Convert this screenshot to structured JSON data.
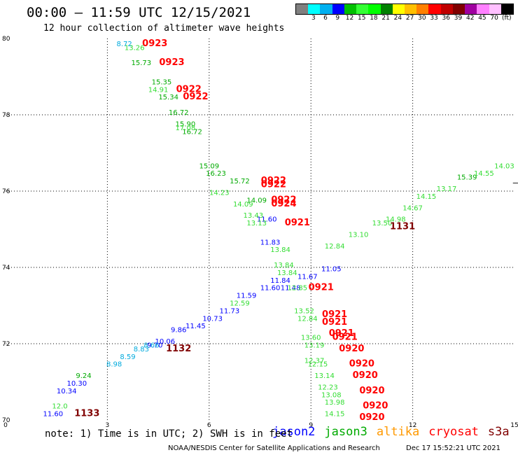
{
  "header": {
    "title": "00:00 – 11:59 UTC 12/15/2021",
    "subtitle": "12 hour collection of altimeter wave heights"
  },
  "colorbar": {
    "colors": [
      "#808080",
      "#00ffff",
      "#00b0f0",
      "#0000ff",
      "#00c000",
      "#33ff33",
      "#00ff00",
      "#008000",
      "#ffff00",
      "#ffc000",
      "#ff8000",
      "#ff0000",
      "#c00000",
      "#800000",
      "#a000a0",
      "#ff80ff",
      "#ffc0ff",
      "#000000"
    ],
    "labels": [
      "3",
      "6",
      "9",
      "12",
      "15",
      "18",
      "21",
      "24",
      "27",
      "30",
      "33",
      "36",
      "39",
      "42",
      "45",
      "70"
    ],
    "units": "(ft)"
  },
  "footer": {
    "note": "note: 1) Time is in UTC; 2) SWH is in feet",
    "credit": "NOAA/NESDIS Center for Satellite Applications and Research",
    "timestamp": "Dec 17 15:52:21 UTC 2021",
    "legend": [
      {
        "name": "jason2",
        "color": "#0000ff"
      },
      {
        "name": "jason3",
        "color": "#00aa00"
      },
      {
        "name": "altika",
        "color": "#ff9900"
      },
      {
        "name": "cryosat",
        "color": "#ff0000"
      },
      {
        "name": "s3a",
        "color": "#800000"
      }
    ]
  },
  "chart_data": {
    "type": "scatter",
    "xlim": [
      0,
      15
    ],
    "ylim": [
      70,
      80
    ],
    "xticks": [
      "0",
      "3",
      "6",
      "9",
      "12",
      "15"
    ],
    "yticks": [
      "70",
      "72",
      "74",
      "76",
      "78",
      "80"
    ],
    "grid": true,
    "series": [
      {
        "name": "jason2",
        "color": "#0000ff",
        "points": [
          {
            "x": 9.6,
            "y": 73.9,
            "label": "11.05"
          },
          {
            "x": 8.9,
            "y": 73.7,
            "label": "11.67"
          },
          {
            "x": 8.1,
            "y": 73.6,
            "label": "11.84"
          },
          {
            "x": 7.8,
            "y": 73.4,
            "label": "11.60"
          },
          {
            "x": 8.4,
            "y": 73.4,
            "label": "11.48"
          },
          {
            "x": 7.1,
            "y": 73.2,
            "label": "11.59"
          },
          {
            "x": 6.6,
            "y": 72.8,
            "label": "11.73"
          },
          {
            "x": 6.1,
            "y": 72.6,
            "label": "10.73"
          },
          {
            "x": 5.6,
            "y": 72.4,
            "label": "11.45"
          },
          {
            "x": 5.1,
            "y": 72.3,
            "label": "9.86"
          },
          {
            "x": 4.7,
            "y": 72.0,
            "label": "10.06"
          },
          {
            "x": 4.4,
            "y": 71.9,
            "label": "9.70"
          },
          {
            "x": 2.1,
            "y": 70.9,
            "label": "10.30"
          },
          {
            "x": 1.8,
            "y": 70.7,
            "label": "10.34"
          },
          {
            "x": 1.4,
            "y": 70.1,
            "label": "11.60"
          },
          {
            "x": 7.7,
            "y": 75.2,
            "label": "11.60"
          },
          {
            "x": 7.8,
            "y": 74.6,
            "label": "11.83"
          }
        ]
      },
      {
        "name": "jason3",
        "color": "#00aa00",
        "points": [
          {
            "x": 4.0,
            "y": 79.3,
            "label": "15.73"
          },
          {
            "x": 4.6,
            "y": 78.8,
            "label": "15.35"
          },
          {
            "x": 4.8,
            "y": 78.4,
            "label": "15.34"
          },
          {
            "x": 5.1,
            "y": 78.0,
            "label": "16.72"
          },
          {
            "x": 5.3,
            "y": 77.7,
            "label": "15.90"
          },
          {
            "x": 5.5,
            "y": 77.5,
            "label": "16.72"
          },
          {
            "x": 6.0,
            "y": 76.6,
            "label": "15.09"
          },
          {
            "x": 6.2,
            "y": 76.4,
            "label": "16.23"
          },
          {
            "x": 6.9,
            "y": 76.2,
            "label": "15.72"
          },
          {
            "x": 7.4,
            "y": 75.7,
            "label": "14.09"
          },
          {
            "x": 13.6,
            "y": 76.3,
            "label": "15.39"
          },
          {
            "x": 2.3,
            "y": 71.1,
            "label": "9.24"
          }
        ]
      },
      {
        "name": "jason3-light",
        "color": "#33dd33",
        "points": [
          {
            "x": 3.8,
            "y": 79.7,
            "label": "13.26"
          },
          {
            "x": 4.5,
            "y": 78.6,
            "label": "14.91"
          },
          {
            "x": 5.3,
            "y": 77.6,
            "label": "17.08"
          },
          {
            "x": 6.3,
            "y": 75.9,
            "label": "14.23"
          },
          {
            "x": 7.0,
            "y": 75.6,
            "label": "14.09"
          },
          {
            "x": 7.3,
            "y": 75.3,
            "label": "13.43"
          },
          {
            "x": 7.4,
            "y": 75.1,
            "label": "13.13"
          },
          {
            "x": 8.1,
            "y": 74.4,
            "label": "13.84"
          },
          {
            "x": 8.2,
            "y": 74.0,
            "label": "13.84"
          },
          {
            "x": 8.3,
            "y": 73.8,
            "label": "13.84"
          },
          {
            "x": 8.6,
            "y": 73.4,
            "label": "12.85"
          },
          {
            "x": 6.9,
            "y": 73.0,
            "label": "12.59"
          },
          {
            "x": 9.7,
            "y": 74.5,
            "label": "12.84"
          },
          {
            "x": 10.4,
            "y": 74.8,
            "label": "13.10"
          },
          {
            "x": 11.1,
            "y": 75.1,
            "label": "13.50"
          },
          {
            "x": 11.5,
            "y": 75.2,
            "label": "14.98"
          },
          {
            "x": 12.0,
            "y": 75.5,
            "label": "14.67"
          },
          {
            "x": 12.4,
            "y": 75.8,
            "label": "14.15"
          },
          {
            "x": 13.0,
            "y": 76.0,
            "label": "13.17"
          },
          {
            "x": 14.1,
            "y": 76.4,
            "label": "14.55"
          },
          {
            "x": 14.7,
            "y": 76.6,
            "label": "14.03"
          },
          {
            "x": 8.8,
            "y": 72.8,
            "label": "13.52"
          },
          {
            "x": 8.9,
            "y": 72.6,
            "label": "12.84"
          },
          {
            "x": 9.0,
            "y": 72.1,
            "label": "13.60"
          },
          {
            "x": 9.1,
            "y": 71.9,
            "label": "13.19"
          },
          {
            "x": 9.1,
            "y": 71.5,
            "label": "12.37"
          },
          {
            "x": 9.2,
            "y": 71.4,
            "label": "12.15"
          },
          {
            "x": 9.4,
            "y": 71.1,
            "label": "13.14"
          },
          {
            "x": 9.5,
            "y": 70.8,
            "label": "12.23"
          },
          {
            "x": 9.6,
            "y": 70.6,
            "label": "13.08"
          },
          {
            "x": 9.7,
            "y": 70.4,
            "label": "13.98"
          },
          {
            "x": 9.7,
            "y": 70.1,
            "label": "14.15"
          },
          {
            "x": 1.6,
            "y": 70.3,
            "label": "12.0"
          }
        ]
      },
      {
        "name": "altika-cyan",
        "color": "#00aadd",
        "points": [
          {
            "x": 3.5,
            "y": 79.8,
            "label": "8.72"
          },
          {
            "x": 3.2,
            "y": 71.4,
            "label": "8.98"
          },
          {
            "x": 3.6,
            "y": 71.6,
            "label": "8.59"
          },
          {
            "x": 4.0,
            "y": 71.8,
            "label": "8.83"
          },
          {
            "x": 4.3,
            "y": 71.9,
            "label": "8.66"
          }
        ]
      },
      {
        "name": "cryosat",
        "color": "#ff0000",
        "points": [
          {
            "x": 4.4,
            "y": 79.8,
            "label": "0923"
          },
          {
            "x": 4.9,
            "y": 79.3,
            "label": "0923"
          },
          {
            "x": 5.4,
            "y": 78.6,
            "label": "0922"
          },
          {
            "x": 5.6,
            "y": 78.4,
            "label": "0922"
          },
          {
            "x": 7.9,
            "y": 76.2,
            "label": "0922"
          },
          {
            "x": 7.9,
            "y": 76.1,
            "label": "0922"
          },
          {
            "x": 8.2,
            "y": 75.7,
            "label": "0922"
          },
          {
            "x": 8.2,
            "y": 75.6,
            "label": "0924"
          },
          {
            "x": 8.6,
            "y": 75.1,
            "label": "0921"
          },
          {
            "x": 9.3,
            "y": 73.4,
            "label": "0921"
          },
          {
            "x": 9.7,
            "y": 72.7,
            "label": "0921"
          },
          {
            "x": 9.7,
            "y": 72.5,
            "label": "0921"
          },
          {
            "x": 9.9,
            "y": 72.2,
            "label": "0921"
          },
          {
            "x": 10.0,
            "y": 72.1,
            "label": "0921"
          },
          {
            "x": 10.2,
            "y": 71.8,
            "label": "0920"
          },
          {
            "x": 10.5,
            "y": 71.4,
            "label": "0920"
          },
          {
            "x": 10.6,
            "y": 71.1,
            "label": "0920"
          },
          {
            "x": 10.8,
            "y": 70.7,
            "label": "0920"
          },
          {
            "x": 10.9,
            "y": 70.3,
            "label": "0920"
          },
          {
            "x": 10.8,
            "y": 70.0,
            "label": "0920"
          }
        ]
      },
      {
        "name": "s3a",
        "color": "#800000",
        "points": [
          {
            "x": 11.7,
            "y": 75.0,
            "label": "1131"
          },
          {
            "x": 5.1,
            "y": 71.8,
            "label": "1132"
          },
          {
            "x": 2.4,
            "y": 70.1,
            "label": "1133"
          }
        ]
      }
    ]
  }
}
